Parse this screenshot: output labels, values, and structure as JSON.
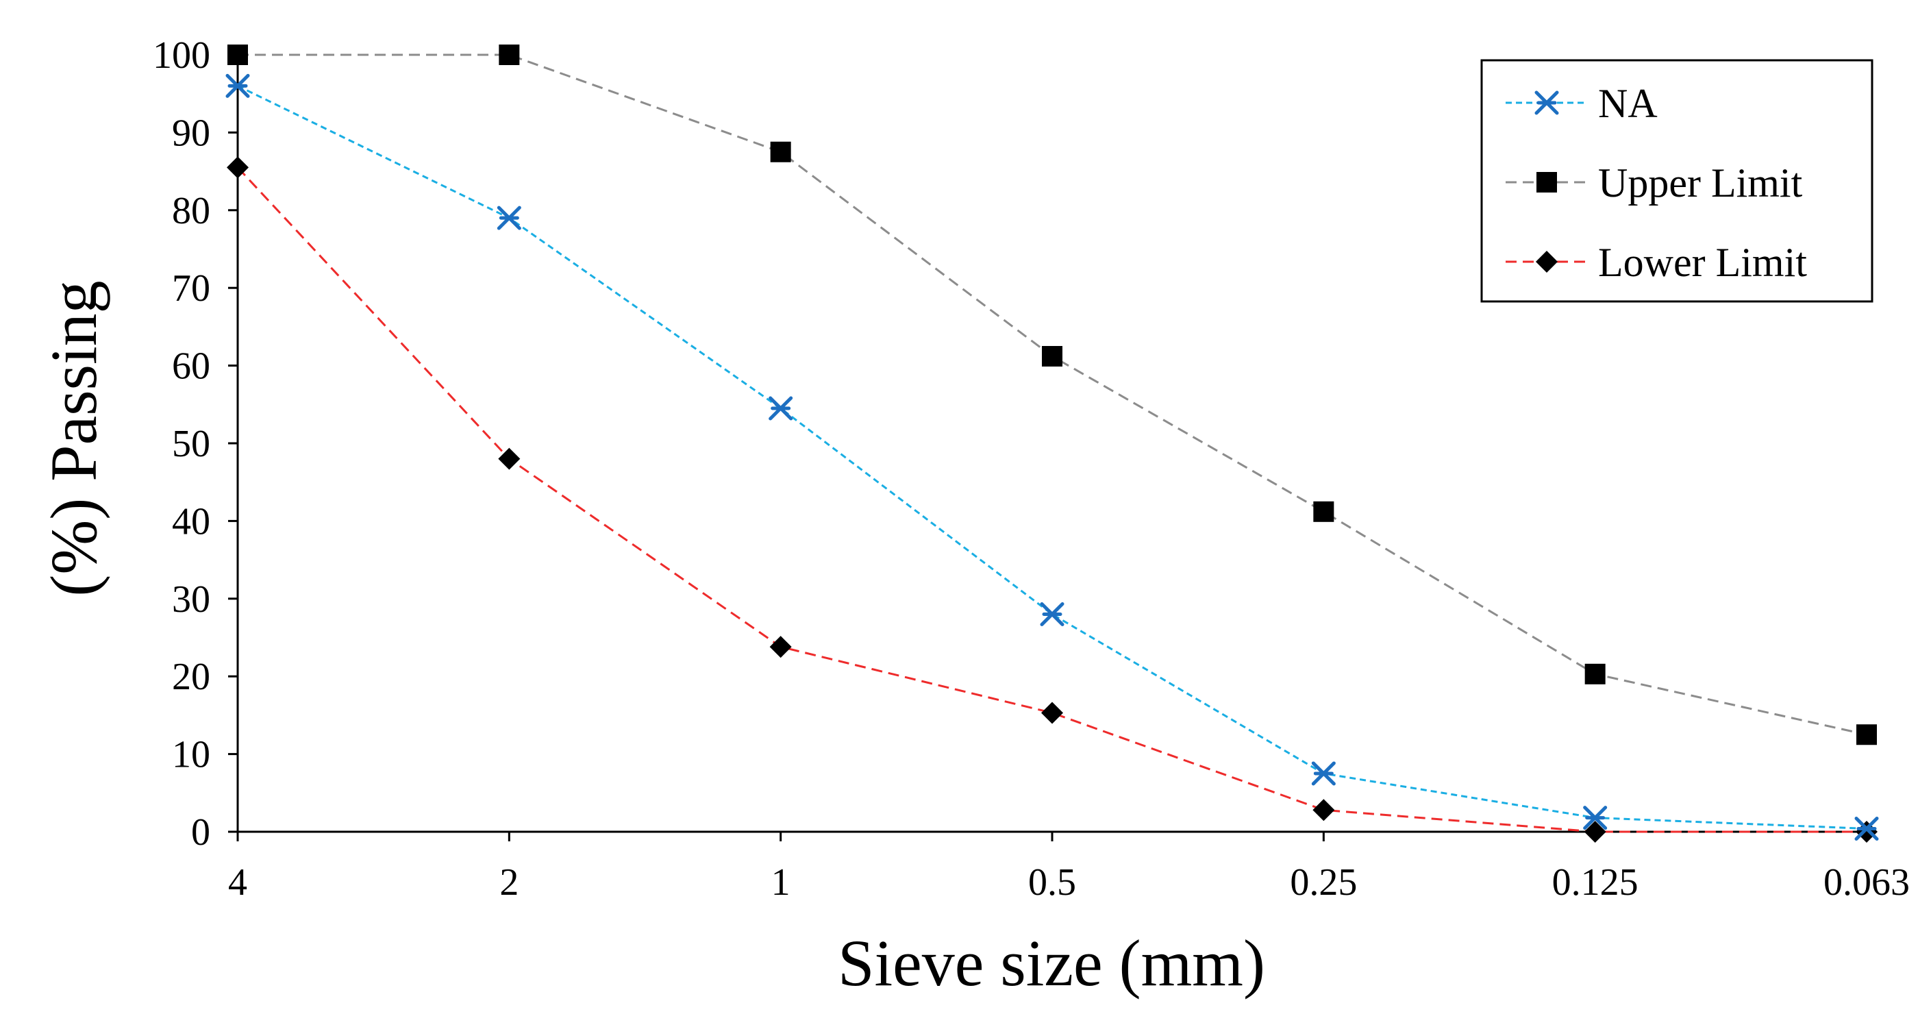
{
  "chart_data": {
    "type": "line",
    "title": "",
    "xlabel": "Sieve size (mm)",
    "ylabel": "(%) Passing",
    "categories": [
      "4",
      "2",
      "1",
      "0.5",
      "0.25",
      "0.125",
      "0.063"
    ],
    "ylim": [
      0,
      100
    ],
    "yticks": [
      0,
      10,
      20,
      30,
      40,
      50,
      60,
      70,
      80,
      90,
      100
    ],
    "grid": false,
    "legend_position": "top-right",
    "series": [
      {
        "name": "NA",
        "values": [
          96,
          79,
          54.5,
          28,
          7.5,
          1.8,
          0.4
        ],
        "color": "#1aaee3",
        "marker_color": "#1d6fc1",
        "marker": "asterisk"
      },
      {
        "name": "Upper Limit",
        "values": [
          100,
          100,
          87.5,
          61.2,
          41.2,
          20.3,
          12.5
        ],
        "color": "#8c8c8c",
        "marker_color": "#000000",
        "marker": "square"
      },
      {
        "name": "Lower Limit",
        "values": [
          85.5,
          48,
          23.8,
          15.3,
          2.8,
          0,
          0
        ],
        "color": "#ee2b2b",
        "marker_color": "#000000",
        "marker": "diamond"
      }
    ]
  }
}
